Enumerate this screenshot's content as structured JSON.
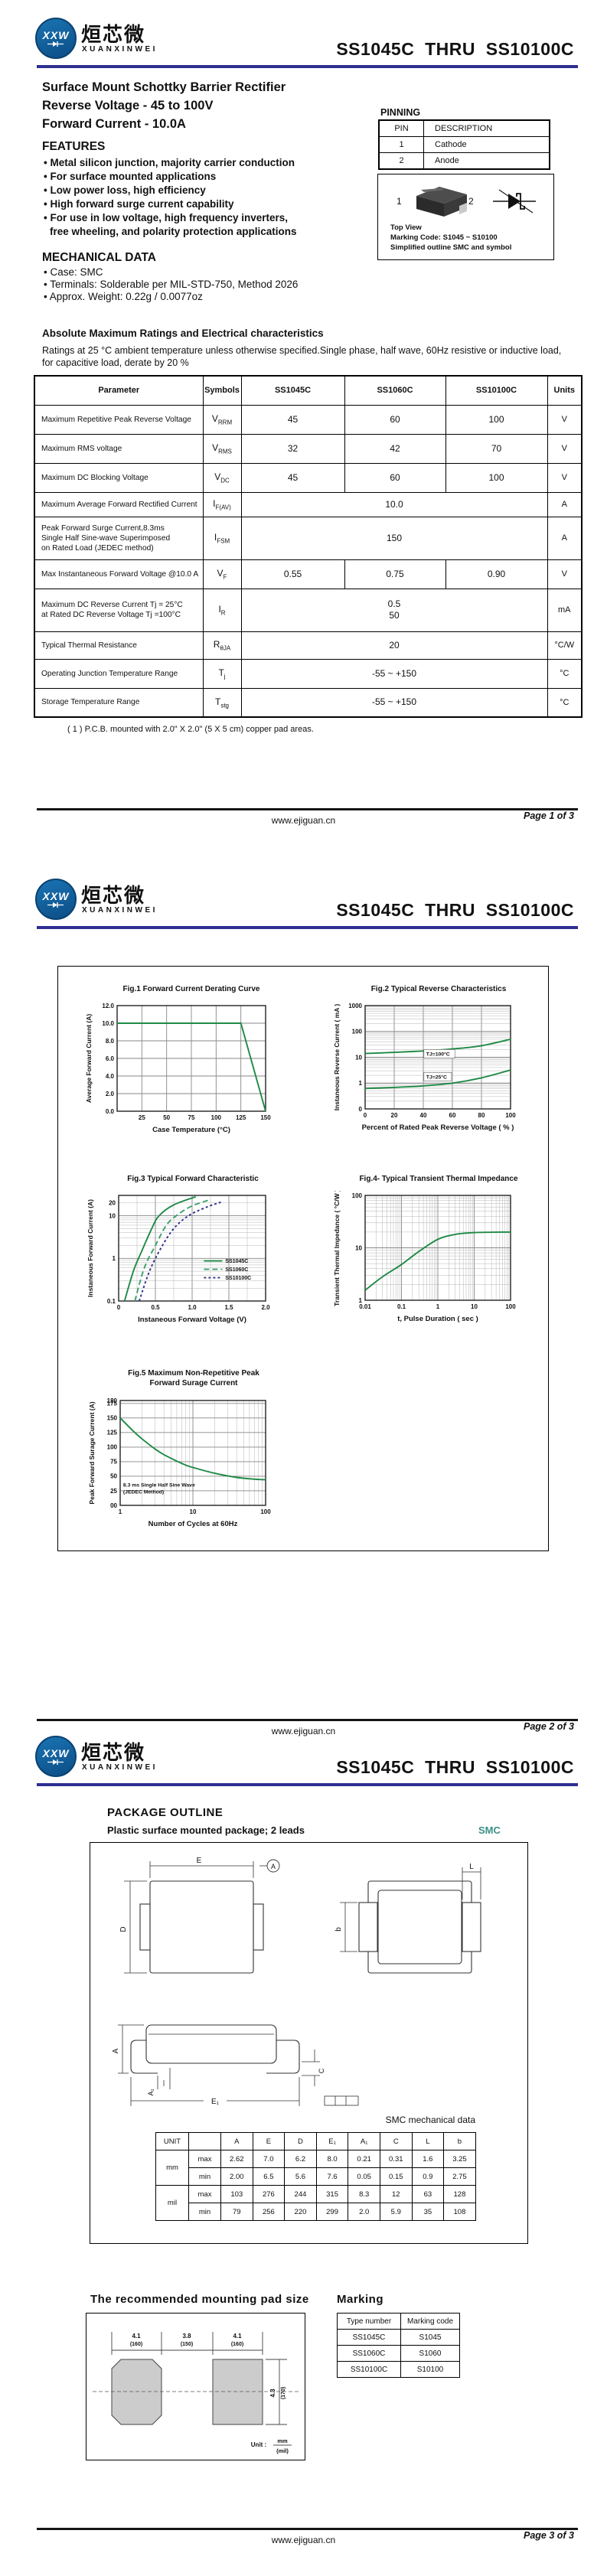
{
  "doc": {
    "brand": {
      "logo_text": "XXW",
      "cn": "烜芯微",
      "en": "XUANXINWEI"
    },
    "title": "SS1045C  THRU  SS10100C",
    "footer": {
      "site": "www.ejiguan.cn",
      "pages": [
        "Page 1 of 3",
        "Page 2 of 3",
        "Page 3 of 3"
      ]
    }
  },
  "page1": {
    "subtitle_lines": [
      "Surface Mount Schottky Barrier Rectifier",
      "Reverse Voltage - 45 to 100V",
      "Forward Current - 10.0A"
    ],
    "features": {
      "heading": "FEATURES",
      "items": [
        "Metal silicon junction, majority carrier conduction",
        "For surface mounted applications",
        "Low power loss, high efficiency",
        "High forward surge current capability",
        "For use in low voltage, high frequency inverters,"
      ],
      "continuation": "free wheeling, and polarity protection applications"
    },
    "mechanical": {
      "heading": "MECHANICAL DATA",
      "items": [
        "Case: SMC",
        "Terminals: Solderable per MIL-STD-750, Method 2026",
        "Approx. Weight:  0.22g / 0.0077oz"
      ]
    },
    "pinning": {
      "heading": "PINNING",
      "headers": [
        "PIN",
        "DESCRIPTION"
      ],
      "rows": [
        [
          "1",
          "Cathode"
        ],
        [
          "2",
          "Anode"
        ]
      ]
    },
    "package_box": {
      "pin1": "1",
      "pin2": "2",
      "lines": [
        "Top View",
        "Marking Code:   S1045 ~ S10100",
        "Simplified outline SMC and symbol"
      ]
    },
    "ratings": {
      "heading": "Absolute Maximum Ratings and Electrical characteristics",
      "note_lines": [
        "Ratings at 25 °C ambient temperature unless otherwise specified.Single phase, half wave, 60Hz resistive or inductive load,",
        "for capacitive load, derate by 20 %"
      ],
      "headers": [
        "Parameter",
        "Symbols",
        "SS1045C",
        "SS1060C",
        "SS10100C",
        "Units"
      ],
      "rows": [
        {
          "param": [
            "Maximum Repetitive Peak Reverse Voltage"
          ],
          "sym": "V",
          "sub": "RRM",
          "cells": [
            "45",
            "60",
            "100"
          ],
          "unit": "V"
        },
        {
          "param": [
            "Maximum RMS voltage"
          ],
          "sym": "V",
          "sub": "RMS",
          "cells": [
            "32",
            "42",
            "70"
          ],
          "unit": "V"
        },
        {
          "param": [
            "Maximum DC Blocking Voltage"
          ],
          "sym": "V",
          "sub": "DC",
          "cells": [
            "45",
            "60",
            "100"
          ],
          "unit": "V"
        },
        {
          "param": [
            "Maximum Average Forward Rectified Current"
          ],
          "sym": "I",
          "sub": "F(AV)",
          "span": "10.0",
          "unit": "A"
        },
        {
          "param": [
            "Peak Forward Surge Current,8.3ms",
            "Single Half Sine-wave Superimposed",
            "on Rated Load (JEDEC method)"
          ],
          "sym": "I",
          "sub": "FSM",
          "span": "150",
          "unit": "A"
        },
        {
          "param": [
            "Max Instantaneous Forward Voltage @10.0 A"
          ],
          "sym": "V",
          "sub": "F",
          "cells": [
            "0.55",
            "0.75",
            "0.90"
          ],
          "unit": "V"
        },
        {
          "param": [
            "Maximum DC Reverse Current    Tj = 25°C",
            "at Rated DC Reverse Voltage     Tj =100°C"
          ],
          "sym": "I",
          "sub": "R",
          "span": "0.5\n50",
          "unit": "mA"
        },
        {
          "param": [
            "Typical Thermal Resistance"
          ],
          "sym": "R",
          "sub": "θJA",
          "span": "20",
          "unit": "°C/W"
        },
        {
          "param": [
            "Operating Junction Temperature Range"
          ],
          "sym": "T",
          "sub": "j",
          "span": "-55 ~ +150",
          "unit": "°C"
        },
        {
          "param": [
            "Storage Temperature Range"
          ],
          "sym": "T",
          "sub": "stg",
          "span": "-55 ~ +150",
          "unit": "°C"
        }
      ],
      "footnote": "( 1 )  P.C.B. mounted with 2.0\" X 2.0\" (5 X 5 cm) copper pad areas."
    }
  },
  "chart_data": [
    {
      "type": "line",
      "title": "Fig.1  Forward Current Derating Curve",
      "xlabel": "Case Temperature (°C)",
      "ylabel": "Average Forward Current (A)",
      "xscale": "linear",
      "yscale": "linear",
      "xlim": [
        0,
        150
      ],
      "ylim": [
        0,
        12
      ],
      "xticks": [
        25,
        50,
        75,
        100,
        125,
        150
      ],
      "yticks": [
        0,
        2,
        4,
        6,
        8,
        10,
        12
      ],
      "ytick_labels": [
        "0.0",
        "2.0",
        "4.0",
        "6.0",
        "8.0",
        "10.0",
        "12.0"
      ],
      "straight": true,
      "grid": true,
      "series": [
        {
          "name": "IF(AV)",
          "color": "#1e8a45",
          "points": [
            [
              0,
              10
            ],
            [
              125,
              10
            ],
            [
              150,
              0
            ]
          ]
        }
      ]
    },
    {
      "type": "line",
      "title": "Fig.2  Typical Reverse Characteristics",
      "xlabel": "Percent of Rated Peak Reverse Voltage ( % )",
      "ylabel": "Instaneous Reverse Current ( mA )",
      "xscale": "linear",
      "yscale": "log",
      "xlim": [
        0,
        100
      ],
      "ylim": [
        0.1,
        1000
      ],
      "xticks": [
        0,
        20,
        40,
        60,
        80,
        100
      ],
      "yticks": [
        0.1,
        1,
        10,
        100,
        1000
      ],
      "ytick_labels": [
        "0",
        "1",
        "10",
        "100",
        "1000"
      ],
      "grid": true,
      "series": [
        {
          "name": "TJ=100°C",
          "color": "#1e8a45",
          "points": [
            [
              0,
              14
            ],
            [
              20,
              15.5
            ],
            [
              40,
              17.5
            ],
            [
              60,
              21
            ],
            [
              80,
              28
            ],
            [
              100,
              50
            ]
          ]
        },
        {
          "name": "TJ=25°C",
          "color": "#1e8a45",
          "points": [
            [
              0,
              0.62
            ],
            [
              20,
              0.68
            ],
            [
              40,
              0.78
            ],
            [
              60,
              1.0
            ],
            [
              80,
              1.6
            ],
            [
              100,
              3.2
            ]
          ]
        }
      ],
      "annotations": [
        {
          "text": "TJ=100°C",
          "x": 42,
          "y": 11.5,
          "box": true
        },
        {
          "text": "TJ=25°C",
          "x": 42,
          "y": 1.5,
          "box": true
        }
      ]
    },
    {
      "type": "line",
      "title": "Fig.3  Typical Forward Characteristic",
      "xlabel": "Instaneous Forward Voltage (V)",
      "ylabel": "Instaneous Forward Current  (A)",
      "xscale": "linear",
      "yscale": "log",
      "xlim": [
        0,
        2.0
      ],
      "ylim": [
        0.1,
        30
      ],
      "xticks": [
        0,
        0.5,
        1.0,
        1.5,
        2.0
      ],
      "xtick_labels": [
        "0",
        "0.5",
        "1.0",
        "1.5",
        "2.0"
      ],
      "xminor": [
        0.25,
        0.75,
        1.25,
        1.75
      ],
      "yticks": [
        0.1,
        1,
        10,
        20
      ],
      "ytick_labels": [
        "0.1",
        "1",
        "10",
        "20"
      ],
      "grid": true,
      "series": [
        {
          "name": "SS1045C",
          "color": "#1e8a45",
          "points": [
            [
              0.08,
              0.1
            ],
            [
              0.2,
              0.5
            ],
            [
              0.3,
              1.3
            ],
            [
              0.45,
              5
            ],
            [
              0.55,
              10
            ],
            [
              0.75,
              18
            ],
            [
              1.05,
              28
            ]
          ]
        },
        {
          "name": "SS1060C",
          "color": "#3aa06e",
          "dash": "7,4",
          "points": [
            [
              0.22,
              0.1
            ],
            [
              0.35,
              0.6
            ],
            [
              0.5,
              2
            ],
            [
              0.65,
              6
            ],
            [
              0.8,
              10.5
            ],
            [
              1.0,
              17
            ],
            [
              1.25,
              24
            ]
          ]
        },
        {
          "name": "SS10100C",
          "color": "#2f2f8f",
          "dash": "3,3",
          "points": [
            [
              0.28,
              0.1
            ],
            [
              0.42,
              0.5
            ],
            [
              0.58,
              1.8
            ],
            [
              0.75,
              5
            ],
            [
              0.95,
              10
            ],
            [
              1.2,
              16
            ],
            [
              1.4,
              21
            ]
          ]
        }
      ],
      "legend": {
        "x": 0.58,
        "y": 0.62
      }
    },
    {
      "type": "line",
      "title": "Fig.4- Typical Transient Thermal Impedance",
      "xlabel": "t, Pulse Duration ( sec )",
      "ylabel": "Transient Thermal Impedance ( °C/W )",
      "xscale": "log",
      "yscale": "log",
      "xlim": [
        0.01,
        100
      ],
      "ylim": [
        1,
        100
      ],
      "xticks": [
        0.01,
        0.1,
        1,
        10,
        100
      ],
      "xtick_labels": [
        "0.01",
        "0.1",
        "1",
        "10",
        "100"
      ],
      "yticks": [
        1,
        10,
        100
      ],
      "ytick_labels": [
        "1",
        "10",
        "100"
      ],
      "grid": true,
      "series": [
        {
          "name": "Zth",
          "color": "#1e8a45",
          "points": [
            [
              0.01,
              1.55
            ],
            [
              0.03,
              2.8
            ],
            [
              0.1,
              4.8
            ],
            [
              0.3,
              8.5
            ],
            [
              1,
              14.5
            ],
            [
              3,
              18
            ],
            [
              10,
              19.5
            ],
            [
              100,
              20
            ]
          ]
        }
      ]
    },
    {
      "type": "line",
      "title": "Fig.5  Maximum Non-Repetitive Peak\nForward Surage Current",
      "xlabel": "Number of Cycles at 60Hz",
      "ylabel": "Peak Forward Surage Current (A)",
      "xscale": "log",
      "yscale": "linear",
      "xlim": [
        1,
        100
      ],
      "ylim": [
        0,
        180
      ],
      "xticks": [
        1,
        10,
        100
      ],
      "xtick_labels": [
        "1",
        "10",
        "100"
      ],
      "yticks": [
        0,
        25,
        50,
        75,
        100,
        125,
        150,
        175,
        180
      ],
      "ytick_labels": [
        "00",
        "25",
        "50",
        "75",
        "100",
        "125",
        "150",
        "175",
        "180"
      ],
      "grid": true,
      "series": [
        {
          "name": "IFSM",
          "color": "#1e8a45",
          "points": [
            [
              1,
              150
            ],
            [
              1.5,
              128
            ],
            [
              2,
              114
            ],
            [
              3,
              97
            ],
            [
              4,
              87
            ],
            [
              6,
              76
            ],
            [
              8,
              69
            ],
            [
              10,
              65
            ],
            [
              20,
              55
            ],
            [
              40,
              48
            ],
            [
              70,
              45
            ],
            [
              100,
              44
            ]
          ]
        }
      ],
      "annotations": [
        {
          "text": "8.3 ms Single Half Sine Wave\n(JEDEC Method)",
          "x": 1.1,
          "y": 32,
          "box": false
        }
      ]
    }
  ],
  "page3": {
    "outline": {
      "heading": "PACKAGE  OUTLINE",
      "subheading": "Plastic surface mounted package; 2 leads",
      "badge": "SMC",
      "dims": {
        "e": "E",
        "a_datum": "A",
        "d": "D",
        "b": "b",
        "l": "L",
        "a": "A",
        "a1": "A₁",
        "e1": "E₁",
        "c": "C"
      }
    },
    "mech_table": {
      "title": "SMC mechanical data",
      "headers": [
        "UNIT",
        "",
        "A",
        "E",
        "D",
        "E₁",
        "A₁",
        "C",
        "L",
        "b"
      ],
      "rows": [
        [
          "mm",
          "max",
          "2.62",
          "7.0",
          "6.2",
          "8.0",
          "0.21",
          "0.31",
          "1.6",
          "3.25"
        ],
        [
          "",
          "min",
          "2.00",
          "6.5",
          "5.6",
          "7.6",
          "0.05",
          "0.15",
          "0.9",
          "2.75"
        ],
        [
          "mil",
          "max",
          "103",
          "276",
          "244",
          "315",
          "8.3",
          "12",
          "63",
          "128"
        ],
        [
          "",
          "min",
          "79",
          "256",
          "220",
          "299",
          "2.0",
          "5.9",
          "35",
          "108"
        ]
      ]
    },
    "pad": {
      "heading": "The recommended mounting pad size",
      "w1": "4.1",
      "w1_mil": "(160)",
      "gap": "3.8",
      "gap_mil": "(150)",
      "w2": "4.1",
      "w2_mil": "(160)",
      "h": "4.3",
      "h_mil": "(170)",
      "unit_prefix": "Unit :",
      "unit_num": "mm",
      "unit_den": "(mil)"
    },
    "marking": {
      "heading": "Marking",
      "headers": [
        "Type number",
        "Marking code"
      ],
      "rows": [
        [
          "SS1045C",
          "S1045"
        ],
        [
          "SS1060C",
          "S1060"
        ],
        [
          "SS10100C",
          "S10100"
        ]
      ]
    }
  }
}
